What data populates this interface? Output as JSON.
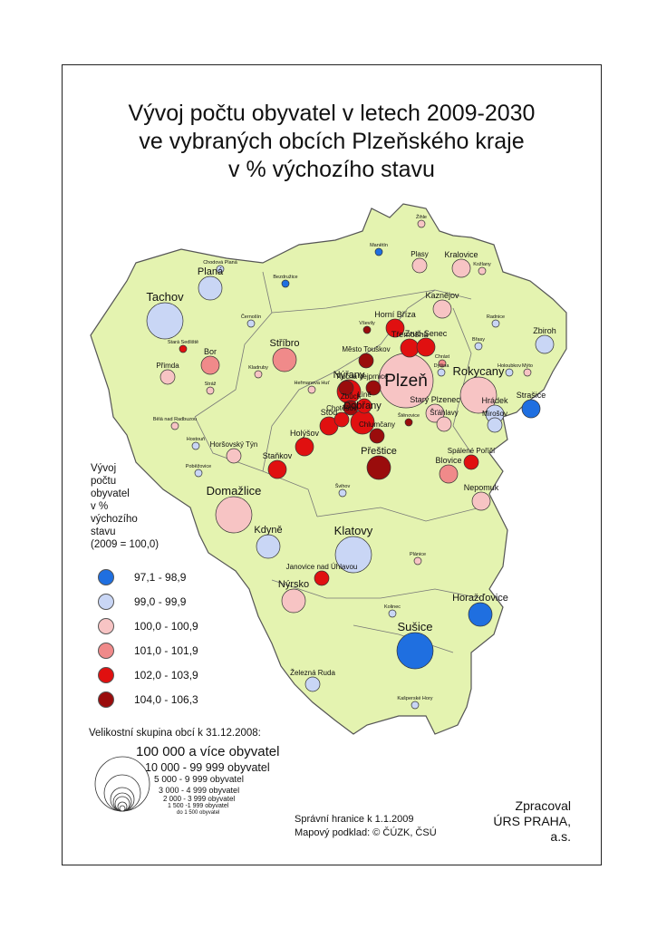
{
  "title": {
    "line1": "Vývoj počtu obyvatel v letech 2009-2030",
    "line2": "ve vybraných obcích Plzeňského kraje",
    "line3": "v % výchozího stavu"
  },
  "colors": {
    "region_fill": "#e4f3b0",
    "border": "#555555",
    "cat_97": "#1f6fe0",
    "cat_99": "#c9d6f5",
    "cat_100": "#f7c4c4",
    "cat_101": "#f08a8a",
    "cat_102": "#e01010",
    "cat_104": "#9a0c0c"
  },
  "legend": {
    "title_lines": [
      "Vývoj",
      "počtu",
      "obyvatel",
      "v %",
      "výchozího",
      "stavu",
      "(2009 = 100,0)"
    ],
    "items": [
      {
        "label": "97,1 -  98,9",
        "color": "#1f6fe0"
      },
      {
        "label": "99,0 -  99,9",
        "color": "#c9d6f5"
      },
      {
        "label": "100,0 - 100,9",
        "color": "#f7c4c4"
      },
      {
        "label": "101,0 - 101,9",
        "color": "#f08a8a"
      },
      {
        "label": "102,0 - 103,9",
        "color": "#e01010"
      },
      {
        "label": "104,0 - 106,3",
        "color": "#9a0c0c"
      }
    ]
  },
  "size_legend": {
    "title": "Velikostní skupina obcí k 31.12.2008:",
    "items": [
      "100 000 a více obyvatel",
      "10 000 - 99 999 obyvatel",
      "5 000 - 9 999 obyvatel",
      "3 000 - 4 999 obyvatel",
      "2 000 - 3 999 obyvatel",
      "1 500 -1 999 obyvatel",
      "do 1 500 obyvatel"
    ]
  },
  "footer": {
    "line1": "Správní hranice k 1.1.2009",
    "line2": "Mapový podklad: © ČÚZK, ČSÚ",
    "credit1": "Zpracoval",
    "credit2": "ÚRS PRAHA, a.s."
  },
  "towns": [
    {
      "name": "Plzeň",
      "cat": "cat_100",
      "size": 7,
      "big": true
    },
    {
      "name": "Rokycany",
      "cat": "cat_100",
      "size": 5
    },
    {
      "name": "Tachov",
      "cat": "cat_99",
      "size": 5
    },
    {
      "name": "Domažlice",
      "cat": "cat_100",
      "size": 5
    },
    {
      "name": "Klatovy",
      "cat": "cat_99",
      "size": 5
    },
    {
      "name": "Sušice",
      "cat": "cat_97",
      "size": 5
    },
    {
      "name": "Stříbro",
      "cat": "cat_101",
      "size": 4
    },
    {
      "name": "Horažďovice",
      "cat": "cat_97",
      "size": 4
    },
    {
      "name": "Kdyně",
      "cat": "cat_99",
      "size": 4
    },
    {
      "name": "Nýrsko",
      "cat": "cat_100",
      "size": 4
    },
    {
      "name": "Přeštice",
      "cat": "cat_104",
      "size": 4
    },
    {
      "name": "Planá",
      "cat": "cat_99",
      "size": 4
    },
    {
      "name": "Nýřany",
      "cat": "cat_102",
      "size": 4
    },
    {
      "name": "Dobřany",
      "cat": "cat_102",
      "size": 4
    },
    {
      "name": "Horní Bříza",
      "cat": "cat_102",
      "size": 3
    },
    {
      "name": "Třemošná",
      "cat": "cat_102",
      "size": 3
    },
    {
      "name": "Zruč-Senec",
      "cat": "cat_102",
      "size": 3
    },
    {
      "name": "Starý Plzenec",
      "cat": "cat_100",
      "size": 3
    },
    {
      "name": "Blovice",
      "cat": "cat_101",
      "size": 3
    },
    {
      "name": "Stod",
      "cat": "cat_102",
      "size": 3
    },
    {
      "name": "Holýšov",
      "cat": "cat_102",
      "size": 3
    },
    {
      "name": "Staňkov",
      "cat": "cat_102",
      "size": 3
    },
    {
      "name": "Bor",
      "cat": "cat_101",
      "size": 3
    },
    {
      "name": "Kralovice",
      "cat": "cat_100",
      "size": 3
    },
    {
      "name": "Kaznějov",
      "cat": "cat_100",
      "size": 3
    },
    {
      "name": "Nepomuk",
      "cat": "cat_100",
      "size": 3
    },
    {
      "name": "Hrádek",
      "cat": "cat_99",
      "size": 3
    },
    {
      "name": "Zbiroh",
      "cat": "cat_99",
      "size": 3
    },
    {
      "name": "Strašice",
      "cat": "cat_97",
      "size": 3
    },
    {
      "name": "Chlumčany",
      "cat": "cat_104",
      "size": 2
    },
    {
      "name": "Tlučná",
      "cat": "cat_104",
      "size": 2
    },
    {
      "name": "Vejprnice",
      "cat": "cat_104",
      "size": 2
    },
    {
      "name": "Chotěšov",
      "cat": "cat_102",
      "size": 2
    },
    {
      "name": "Zbůch",
      "cat": "cat_104",
      "size": 2
    },
    {
      "name": "Líně",
      "cat": "cat_102",
      "size": 2
    },
    {
      "name": "Šťáhlavy",
      "cat": "cat_100",
      "size": 2
    },
    {
      "name": "Mirošov",
      "cat": "cat_99",
      "size": 2
    },
    {
      "name": "Spálené Poříčí",
      "cat": "cat_102",
      "size": 2
    },
    {
      "name": "Janovice nad Úhlavou",
      "cat": "cat_102",
      "size": 2
    },
    {
      "name": "Město Touškov",
      "cat": "cat_104",
      "size": 2
    },
    {
      "name": "Plasy",
      "cat": "cat_100",
      "size": 2
    },
    {
      "name": "Horšovský Týn",
      "cat": "cat_100",
      "size": 2
    },
    {
      "name": "Železná Ruda",
      "cat": "cat_99",
      "size": 2
    },
    {
      "name": "Přimda",
      "cat": "cat_100",
      "size": 2
    },
    {
      "name": "Hostouň",
      "cat": "cat_99",
      "size": 1
    },
    {
      "name": "Chodová Planá",
      "cat": "cat_99",
      "size": 1
    },
    {
      "name": "Bělá nad Radbuzou",
      "cat": "cat_100",
      "size": 1
    },
    {
      "name": "Poběžovice",
      "cat": "cat_99",
      "size": 1
    },
    {
      "name": "Kolinec",
      "cat": "cat_99",
      "size": 1
    },
    {
      "name": "Plánice",
      "cat": "cat_100",
      "size": 1
    },
    {
      "name": "Švihov",
      "cat": "cat_99",
      "size": 1
    },
    {
      "name": "Kašperské Hory",
      "cat": "cat_99",
      "size": 1
    },
    {
      "name": "Radnice",
      "cat": "cat_99",
      "size": 1
    },
    {
      "name": "Břasy",
      "cat": "cat_99",
      "size": 1
    },
    {
      "name": "Chrást",
      "cat": "cat_101",
      "size": 1
    },
    {
      "name": "Dýšina",
      "cat": "cat_99",
      "size": 1
    },
    {
      "name": "Holoubkov",
      "cat": "cat_99",
      "size": 1
    },
    {
      "name": "Mýto",
      "cat": "cat_100",
      "size": 1
    },
    {
      "name": "Kožlany",
      "cat": "cat_100",
      "size": 1
    },
    {
      "name": "Manětín",
      "cat": "cat_97",
      "size": 1
    },
    {
      "name": "Žihle",
      "cat": "cat_100",
      "size": 1
    },
    {
      "name": "Bezdružice",
      "cat": "cat_97",
      "size": 1
    },
    {
      "name": "Černošín",
      "cat": "cat_99",
      "size": 1
    },
    {
      "name": "Kladruby",
      "cat": "cat_100",
      "size": 1
    },
    {
      "name": "Heřmanova Huť",
      "cat": "cat_100",
      "size": 1
    },
    {
      "name": "Stará Sedliště",
      "cat": "cat_102",
      "size": 1
    },
    {
      "name": "Stráž",
      "cat": "cat_100",
      "size": 1
    },
    {
      "name": "Vševily",
      "cat": "cat_104",
      "size": 1
    },
    {
      "name": "Štěnovice",
      "cat": "cat_104",
      "size": 1
    }
  ]
}
